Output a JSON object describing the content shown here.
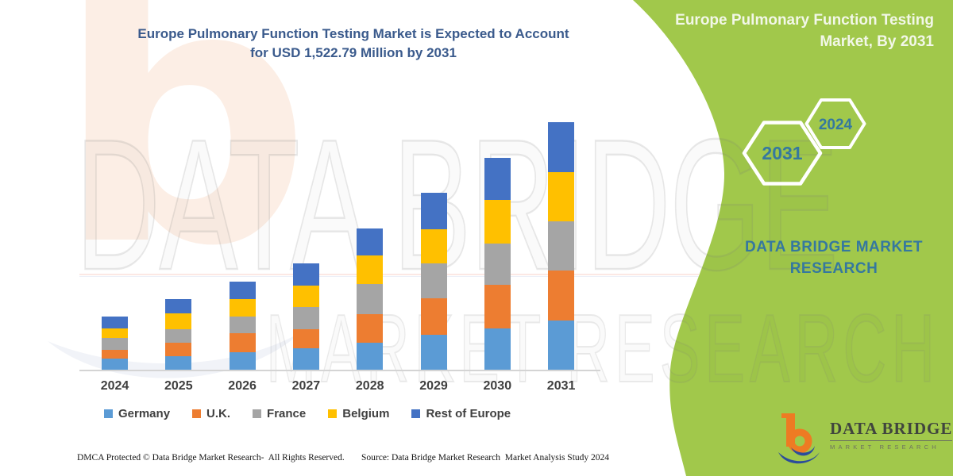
{
  "colors": {
    "germany": "#5B9BD5",
    "uk": "#ED7D31",
    "france": "#A5A5A5",
    "belgium": "#FFC000",
    "rest_of_europe": "#4472C4",
    "panel_green": "#A1C84B",
    "title_blue": "#3A5A8C",
    "teal_text": "#35789F",
    "logo_orange": "#EE7B23",
    "logo_blue": "#2B4C9B"
  },
  "main_title_lines": [
    "Europe Pulmonary Function Testing Market is Expected to Account",
    "for USD 1,522.79 Million by 2031"
  ],
  "side_panel": {
    "title_lines": [
      "Europe Pulmonary Function Testing",
      "Market, By 2031"
    ],
    "hexagon_labels": [
      "2031",
      "2024"
    ],
    "brand_lines": [
      "DATA BRIDGE MARKET",
      "RESEARCH"
    ]
  },
  "logo": {
    "name_text": "DATA BRIDGE",
    "sub_text": "MARKET RESEARCH"
  },
  "watermark": {
    "line1": "DATA BRIDGE",
    "line2": "MARKET RESEARCH"
  },
  "footer": {
    "left": "DMCA Protected © Data Bridge Market Research-  All Rights Reserved.",
    "right": "Source: Data Bridge Market Research  Market Analysis Study 2024"
  },
  "chart_data": {
    "type": "bar",
    "stacked": true,
    "title": "Europe Pulmonary Function Testing Market is Expected to Account for USD 1,522.79 Million by 2031",
    "categories": [
      "2024",
      "2025",
      "2026",
      "2027",
      "2028",
      "2029",
      "2030",
      "2031"
    ],
    "unit": "USD Million",
    "value_note": "No y-axis shown in figure; values estimated from bar heights, scaled so the 2031 total equals 1522.79",
    "series": [
      {
        "name": "Germany",
        "color_key": "germany",
        "values": [
          70,
          83,
          107,
          132,
          166,
          215,
          254,
          303
        ]
      },
      {
        "name": "U.K.",
        "color_key": "uk",
        "values": [
          52,
          83,
          117,
          117,
          176,
          224,
          268,
          307
        ]
      },
      {
        "name": "France",
        "color_key": "france",
        "values": [
          73,
          83,
          103,
          137,
          185,
          215,
          254,
          303
        ]
      },
      {
        "name": "Belgium",
        "color_key": "belgium",
        "values": [
          59,
          98,
          107,
          132,
          176,
          210,
          268,
          303
        ]
      },
      {
        "name": "Rest of Europe",
        "color_key": "rest_of_europe",
        "values": [
          73,
          88,
          107,
          137,
          166,
          224,
          259,
          307
        ]
      }
    ],
    "totals": [
      327,
      435,
      541,
      655,
      869,
      1088,
      1303,
      1523
    ],
    "headline_value_2031": 1522.79,
    "legend_position": "bottom",
    "grid": false,
    "y_axis_shown": false
  }
}
